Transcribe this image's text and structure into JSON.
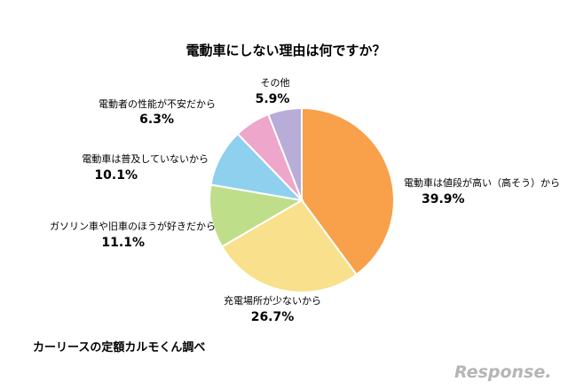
{
  "chart_data": {
    "type": "pie",
    "title": "電動車にしない理由は何ですか？",
    "slices": [
      {
        "label": "電動車は値段が高い（高そう）から",
        "value": 39.9,
        "display": "39.9%",
        "color": "#f8a04a"
      },
      {
        "label": "充電場所が少ないから",
        "value": 26.7,
        "display": "26.7%",
        "color": "#f8e08c"
      },
      {
        "label": "ガソリン車や旧車のほうが好きだから",
        "value": 11.1,
        "display": "11.1%",
        "color": "#bfde8a"
      },
      {
        "label": "電動車は普及していないから",
        "value": 10.1,
        "display": "10.1%",
        "color": "#8fd0ee"
      },
      {
        "label": "電動者の性能が不安だから",
        "value": 6.3,
        "display": "6.3%",
        "color": "#efa6cb"
      },
      {
        "label": "その他",
        "value": 5.9,
        "display": "5.9%",
        "color": "#b8acd8"
      }
    ]
  },
  "footer": {
    "source": "カーリースの定額カルモくん調べ",
    "brand": "Response."
  },
  "colors": {
    "background": "#ffffff",
    "text": "#222222",
    "brand": "#b5b5b5"
  }
}
